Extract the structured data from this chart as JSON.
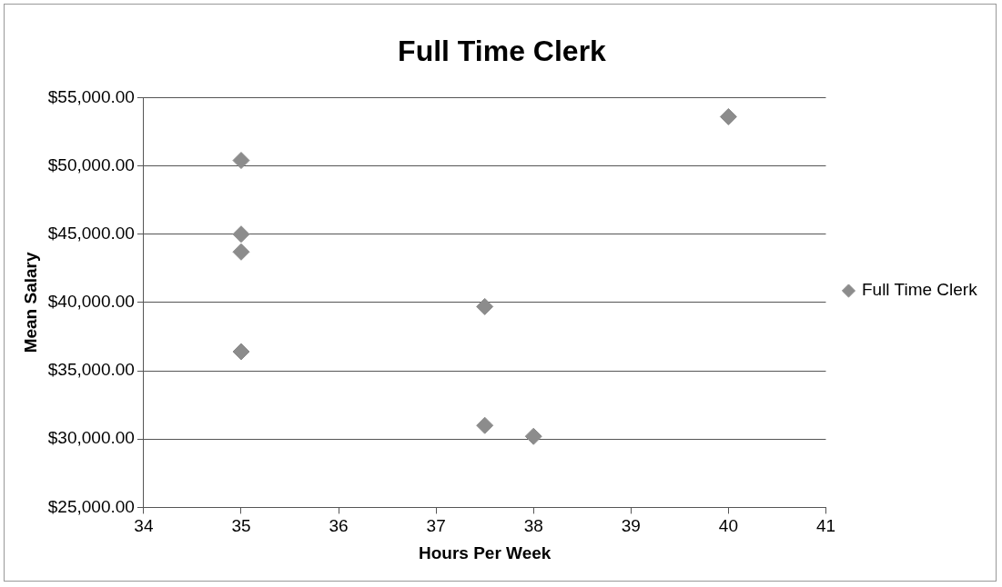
{
  "chart_data": {
    "type": "scatter",
    "title": "Full Time Clerk",
    "xlabel": "Hours Per Week",
    "ylabel": "Mean Salary",
    "series": [
      {
        "name": "Full Time Clerk",
        "color": "#8c8c8c",
        "x": [
          35,
          35,
          35,
          35,
          37.5,
          37.5,
          38,
          40
        ],
        "values": [
          50400,
          45000,
          43700,
          36400,
          39700,
          31000,
          30200,
          53600
        ]
      }
    ],
    "xlim": [
      34,
      41
    ],
    "xticks": [
      34,
      35,
      36,
      37,
      38,
      39,
      40,
      41
    ],
    "ylim": [
      25000,
      55000
    ],
    "yticks": [
      {
        "value": 25000,
        "label": "$25,000.00"
      },
      {
        "value": 30000,
        "label": "$30,000.00"
      },
      {
        "value": 35000,
        "label": "$35,000.00"
      },
      {
        "value": 40000,
        "label": "$40,000.00"
      },
      {
        "value": 45000,
        "label": "$45,000.00"
      },
      {
        "value": 50000,
        "label": "$50,000.00"
      },
      {
        "value": 55000,
        "label": "$55,000.00"
      }
    ],
    "grid": "y",
    "legend": "right",
    "marker": "diamond"
  }
}
